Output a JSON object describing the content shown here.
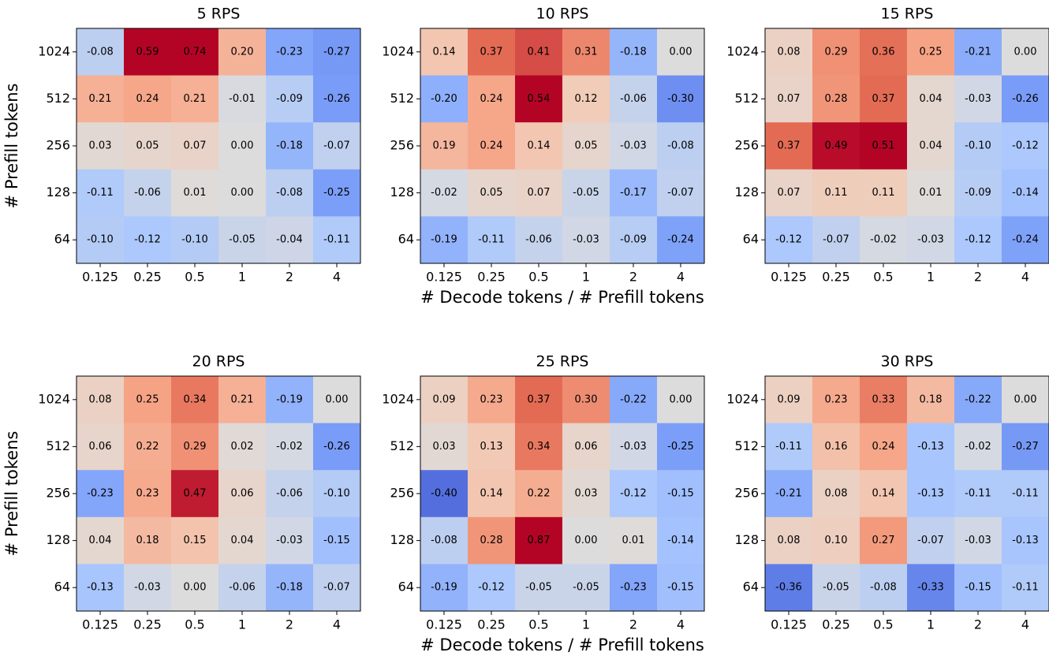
{
  "chart_data": [
    {
      "type": "heatmap",
      "title": "5 RPS",
      "ylabel": "# Prefill tokens",
      "colormap": "coolwarm",
      "clim": [
        -0.5,
        0.5
      ],
      "x": [
        "0.125",
        "0.25",
        "0.5",
        "1",
        "2",
        "4"
      ],
      "y": [
        "1024",
        "512",
        "256",
        "128",
        "64"
      ],
      "values": [
        [
          -0.08,
          0.59,
          0.74,
          0.2,
          -0.23,
          -0.27
        ],
        [
          0.21,
          0.24,
          0.21,
          -0.01,
          -0.09,
          -0.26
        ],
        [
          0.03,
          0.05,
          0.07,
          0.0,
          -0.18,
          -0.07
        ],
        [
          -0.11,
          -0.06,
          0.01,
          0.0,
          -0.08,
          -0.25
        ],
        [
          -0.1,
          -0.12,
          -0.1,
          -0.05,
          -0.04,
          -0.11
        ]
      ],
      "value_labels": [
        [
          "-0.08",
          "0.59",
          "0.74",
          "0.20",
          "-0.23",
          "-0.27"
        ],
        [
          "0.21",
          "0.24",
          "0.21",
          "-0.01",
          "-0.09",
          "-0.26"
        ],
        [
          "0.03",
          "0.05",
          "0.07",
          "0.00",
          "-0.18",
          "-0.07"
        ],
        [
          "-0.11",
          "-0.06",
          "0.01",
          "0.00",
          "-0.08",
          "-0.25"
        ],
        [
          "-0.10",
          "-0.12",
          "-0.10",
          "-0.05",
          "-0.04",
          "-0.11"
        ]
      ]
    },
    {
      "type": "heatmap",
      "title": "10 RPS",
      "xlabel": "# Decode tokens / # Prefill tokens",
      "colormap": "coolwarm",
      "clim": [
        -0.5,
        0.5
      ],
      "x": [
        "0.125",
        "0.25",
        "0.5",
        "1",
        "2",
        "4"
      ],
      "y": [
        "1024",
        "512",
        "256",
        "128",
        "64"
      ],
      "values": [
        [
          0.14,
          0.37,
          0.41,
          0.31,
          -0.18,
          0.0
        ],
        [
          -0.2,
          0.24,
          0.54,
          0.12,
          -0.06,
          -0.3
        ],
        [
          0.19,
          0.24,
          0.14,
          0.05,
          -0.03,
          -0.08
        ],
        [
          -0.02,
          0.05,
          0.07,
          -0.05,
          -0.17,
          -0.07
        ],
        [
          -0.19,
          -0.11,
          -0.06,
          -0.03,
          -0.09,
          -0.24
        ]
      ],
      "value_labels": [
        [
          "0.14",
          "0.37",
          "0.41",
          "0.31",
          "-0.18",
          "0.00"
        ],
        [
          "-0.20",
          "0.24",
          "0.54",
          "0.12",
          "-0.06",
          "-0.30"
        ],
        [
          "0.19",
          "0.24",
          "0.14",
          "0.05",
          "-0.03",
          "-0.08"
        ],
        [
          "-0.02",
          "0.05",
          "0.07",
          "-0.05",
          "-0.17",
          "-0.07"
        ],
        [
          "-0.19",
          "-0.11",
          "-0.06",
          "-0.03",
          "-0.09",
          "-0.24"
        ]
      ]
    },
    {
      "type": "heatmap",
      "title": "15 RPS",
      "colormap": "coolwarm",
      "clim": [
        -0.5,
        0.5
      ],
      "x": [
        "0.125",
        "0.25",
        "0.5",
        "1",
        "2",
        "4"
      ],
      "y": [
        "1024",
        "512",
        "256",
        "128",
        "64"
      ],
      "values": [
        [
          0.08,
          0.29,
          0.36,
          0.25,
          -0.21,
          0.0
        ],
        [
          0.07,
          0.28,
          0.37,
          0.04,
          -0.03,
          -0.26
        ],
        [
          0.37,
          0.49,
          0.51,
          0.04,
          -0.1,
          -0.12
        ],
        [
          0.07,
          0.11,
          0.11,
          0.01,
          -0.09,
          -0.14
        ],
        [
          -0.12,
          -0.07,
          -0.02,
          -0.03,
          -0.12,
          -0.24
        ]
      ],
      "value_labels": [
        [
          "0.08",
          "0.29",
          "0.36",
          "0.25",
          "-0.21",
          "0.00"
        ],
        [
          "0.07",
          "0.28",
          "0.37",
          "0.04",
          "-0.03",
          "-0.26"
        ],
        [
          "0.37",
          "0.49",
          "0.51",
          "0.04",
          "-0.10",
          "-0.12"
        ],
        [
          "0.07",
          "0.11",
          "0.11",
          "0.01",
          "-0.09",
          "-0.14"
        ],
        [
          "-0.12",
          "-0.07",
          "-0.02",
          "-0.03",
          "-0.12",
          "-0.24"
        ]
      ]
    },
    {
      "type": "heatmap",
      "title": "20 RPS",
      "ylabel": "# Prefill tokens",
      "colormap": "coolwarm",
      "clim": [
        -0.5,
        0.5
      ],
      "x": [
        "0.125",
        "0.25",
        "0.5",
        "1",
        "2",
        "4"
      ],
      "y": [
        "1024",
        "512",
        "256",
        "128",
        "64"
      ],
      "values": [
        [
          0.08,
          0.25,
          0.34,
          0.21,
          -0.19,
          0.0
        ],
        [
          0.06,
          0.22,
          0.29,
          0.02,
          -0.02,
          -0.26
        ],
        [
          -0.23,
          0.23,
          0.47,
          0.06,
          -0.06,
          -0.1
        ],
        [
          0.04,
          0.18,
          0.15,
          0.04,
          -0.03,
          -0.15
        ],
        [
          -0.13,
          -0.03,
          0.0,
          -0.06,
          -0.18,
          -0.07
        ]
      ],
      "value_labels": [
        [
          "0.08",
          "0.25",
          "0.34",
          "0.21",
          "-0.19",
          "0.00"
        ],
        [
          "0.06",
          "0.22",
          "0.29",
          "0.02",
          "-0.02",
          "-0.26"
        ],
        [
          "-0.23",
          "0.23",
          "0.47",
          "0.06",
          "-0.06",
          "-0.10"
        ],
        [
          "0.04",
          "0.18",
          "0.15",
          "0.04",
          "-0.03",
          "-0.15"
        ],
        [
          "-0.13",
          "-0.03",
          "0.00",
          "-0.06",
          "-0.18",
          "-0.07"
        ]
      ]
    },
    {
      "type": "heatmap",
      "title": "25 RPS",
      "xlabel": "# Decode tokens / # Prefill tokens",
      "colormap": "coolwarm",
      "clim": [
        -0.5,
        0.5
      ],
      "x": [
        "0.125",
        "0.25",
        "0.5",
        "1",
        "2",
        "4"
      ],
      "y": [
        "1024",
        "512",
        "256",
        "128",
        "64"
      ],
      "values": [
        [
          0.09,
          0.23,
          0.37,
          0.3,
          -0.22,
          0.0
        ],
        [
          0.03,
          0.13,
          0.34,
          0.06,
          -0.03,
          -0.25
        ],
        [
          -0.4,
          0.14,
          0.22,
          0.03,
          -0.12,
          -0.15
        ],
        [
          -0.08,
          0.28,
          0.87,
          0.0,
          0.01,
          -0.14
        ],
        [
          -0.19,
          -0.12,
          -0.05,
          -0.05,
          -0.23,
          -0.15
        ]
      ],
      "value_labels": [
        [
          "0.09",
          "0.23",
          "0.37",
          "0.30",
          "-0.22",
          "0.00"
        ],
        [
          "0.03",
          "0.13",
          "0.34",
          "0.06",
          "-0.03",
          "-0.25"
        ],
        [
          "-0.40",
          "0.14",
          "0.22",
          "0.03",
          "-0.12",
          "-0.15"
        ],
        [
          "-0.08",
          "0.28",
          "0.87",
          "0.00",
          "0.01",
          "-0.14"
        ],
        [
          "-0.19",
          "-0.12",
          "-0.05",
          "-0.05",
          "-0.23",
          "-0.15"
        ]
      ]
    },
    {
      "type": "heatmap",
      "title": "30 RPS",
      "colormap": "coolwarm",
      "clim": [
        -0.5,
        0.5
      ],
      "x": [
        "0.125",
        "0.25",
        "0.5",
        "1",
        "2",
        "4"
      ],
      "y": [
        "1024",
        "512",
        "256",
        "128",
        "64"
      ],
      "values": [
        [
          0.09,
          0.23,
          0.33,
          0.18,
          -0.22,
          0.0
        ],
        [
          -0.11,
          0.16,
          0.24,
          -0.13,
          -0.02,
          -0.27
        ],
        [
          -0.21,
          0.08,
          0.14,
          -0.13,
          -0.11,
          -0.11
        ],
        [
          0.08,
          0.1,
          0.27,
          -0.07,
          -0.03,
          -0.13
        ],
        [
          -0.36,
          -0.05,
          -0.08,
          -0.33,
          -0.15,
          -0.11
        ]
      ],
      "value_labels": [
        [
          "0.09",
          "0.23",
          "0.33",
          "0.18",
          "-0.22",
          "0.00"
        ],
        [
          "-0.11",
          "0.16",
          "0.24",
          "-0.13",
          "-0.02",
          "-0.27"
        ],
        [
          "-0.21",
          "0.08",
          "0.14",
          "-0.13",
          "-0.11",
          "-0.11"
        ],
        [
          "0.08",
          "0.10",
          "0.27",
          "-0.07",
          "-0.03",
          "-0.13"
        ],
        [
          "-0.36",
          "-0.05",
          "-0.08",
          "-0.33",
          "-0.15",
          "-0.11"
        ]
      ]
    }
  ]
}
